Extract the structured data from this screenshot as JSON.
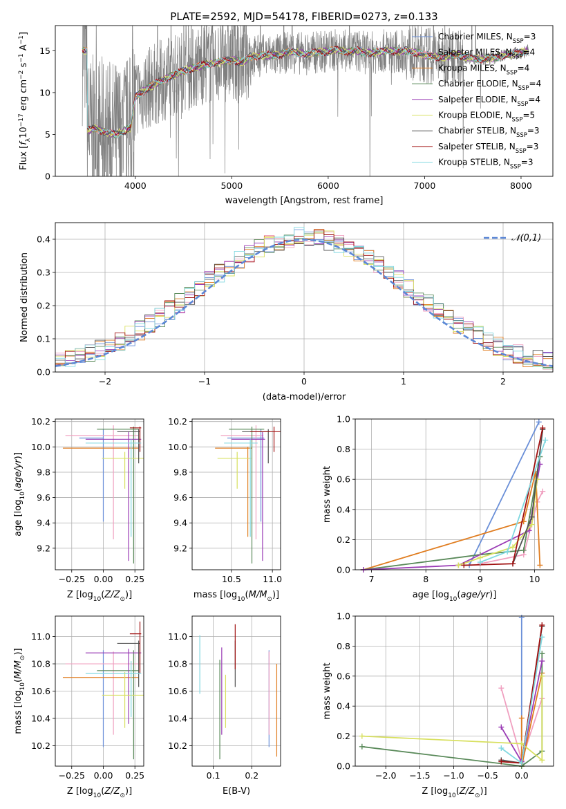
{
  "figure_title": "PLATE=2592, MJD=54178, FIBERID=0273, z=0.133",
  "series_colors": [
    "#6a8fd8",
    "#f0a0c0",
    "#e07d20",
    "#5a8a5a",
    "#9a3bb5",
    "#d8e060",
    "#505050",
    "#a01010",
    "#80d8e0"
  ],
  "legend_labels": [
    [
      "Chabrier MILES, N",
      "SSP",
      "=3"
    ],
    [
      "Salpeter MILES, N",
      "SSP",
      "=4"
    ],
    [
      "Kroupa MILES, N",
      "SSP",
      "=4"
    ],
    [
      "Chabrier ELODIE, N",
      "SSP",
      "=4"
    ],
    [
      "Salpeter ELODIE, N",
      "SSP",
      "=4"
    ],
    [
      "Kroupa ELODIE, N",
      "SSP",
      "=5"
    ],
    [
      "Chabrier STELIB, N",
      "SSP",
      "=3"
    ],
    [
      "Salpeter STELIB, N",
      "SSP",
      "=3"
    ],
    [
      "Kroupa STELIB, N",
      "SSP",
      "=3"
    ]
  ],
  "chart_data": [
    {
      "id": "spectrum",
      "type": "line",
      "xlabel": "wavelength [Angstrom, rest frame]",
      "ylabel": "Flux [f_λ 10^-17 erg cm^-2 s^-1 A^-1]",
      "xlim": [
        3170,
        8330
      ],
      "ylim": [
        0,
        18
      ],
      "xticks": [
        4000,
        5000,
        6000,
        7000,
        8000
      ],
      "yticks": [
        0,
        5,
        10,
        15
      ],
      "grid": false,
      "legend": "top-right",
      "data_color": "#808080",
      "continuum": {
        "x": [
          3500,
          3600,
          3700,
          3800,
          3900,
          3950,
          4000,
          4100,
          4200,
          4300,
          4400,
          4500,
          4600,
          4700,
          4800,
          4900,
          5000,
          5100,
          5200,
          5300,
          5400,
          5500,
          5600,
          5700,
          5800,
          5900,
          6000,
          6100,
          6200,
          6300,
          6400,
          6500,
          6600,
          6700,
          6800,
          6900,
          7000,
          7100,
          7200,
          7300,
          7400,
          7500,
          7600,
          7700,
          7800,
          7900,
          8000,
          8100
        ],
        "y": [
          5.5,
          5.7,
          5.2,
          5.0,
          5.5,
          5.8,
          9.5,
          10.3,
          11.0,
          11.6,
          12.1,
          12.6,
          12.9,
          13.3,
          13.5,
          13.7,
          13.9,
          13.6,
          14.3,
          14.4,
          14.5,
          14.5,
          14.9,
          14.7,
          14.6,
          14.9,
          14.9,
          15.1,
          14.9,
          15.0,
          14.7,
          14.8,
          15.0,
          14.9,
          15.0,
          14.8,
          14.5,
          14.3,
          14.2,
          14.6,
          14.3,
          14.1,
          14.0,
          14.1,
          14.4,
          14.6,
          14.8,
          15.0
        ]
      },
      "data_range": [
        3450,
        8080
      ]
    },
    {
      "id": "residuals",
      "type": "line",
      "xlabel": "(data-model)/error",
      "ylabel": "Normed distribution",
      "xlim": [
        -2.5,
        2.5
      ],
      "ylim": [
        0,
        0.45
      ],
      "xticks": [
        -2,
        -1,
        0,
        1,
        2
      ],
      "yticks": [
        0.0,
        0.1,
        0.2,
        0.3,
        0.4
      ],
      "grid": true,
      "legend": "top-right",
      "legend_label": "𝒩(0,1)",
      "normal_color": "#5b87d6",
      "hist_edges": [
        -2.5,
        -2.4,
        -2.3,
        -2.2,
        -2.1,
        -2.0,
        -1.9,
        -1.8,
        -1.7,
        -1.6,
        -1.5,
        -1.4,
        -1.3,
        -1.2,
        -1.1,
        -1.0,
        -0.9,
        -0.8,
        -0.7,
        -0.6,
        -0.5,
        -0.4,
        -0.3,
        -0.2,
        -0.1,
        0.0,
        0.1,
        0.2,
        0.3,
        0.4,
        0.5,
        0.6,
        0.7,
        0.8,
        0.9,
        1.0,
        1.1,
        1.2,
        1.3,
        1.4,
        1.5,
        1.6,
        1.7,
        1.8,
        1.9,
        2.0,
        2.1,
        2.2,
        2.3,
        2.4,
        2.5
      ]
    },
    {
      "id": "age_vs_Z",
      "type": "scatter",
      "xlabel": "Z [log10(Z/Z⊙)]",
      "ylabel": "age  [log10(age/yr)]",
      "xlim": [
        -0.38,
        0.32
      ],
      "ylim": [
        9.03,
        10.22
      ],
      "xticks": [
        -0.25,
        0.0,
        0.25
      ],
      "yticks": [
        9.2,
        9.4,
        9.6,
        9.8,
        10.0,
        10.2
      ],
      "grid": true,
      "errorbars": [
        {
          "x": 0.0,
          "xerr": [
            0.19,
            0.0
          ],
          "y": 10.07,
          "yerr": [
            0.66,
            0.07
          ],
          "color": "#6a8fd8"
        },
        {
          "x": 0.08,
          "xerr": [
            0.38,
            0.2
          ],
          "y": 10.09,
          "yerr": [
            0.82,
            0.08
          ],
          "color": "#f0a0c0"
        },
        {
          "x": 0.05,
          "xerr": [
            0.37,
            0.23
          ],
          "y": 9.99,
          "yerr": [
            0.0,
            0.0
          ],
          "color": "#e07d20"
        },
        {
          "x": 0.24,
          "xerr": [
            0.29,
            0.04
          ],
          "y": 10.14,
          "yerr": [
            1.06,
            0.02
          ],
          "color": "#5a8a5a"
        },
        {
          "x": 0.2,
          "xerr": [
            0.34,
            0.1
          ],
          "y": 10.06,
          "yerr": [
            0.96,
            0.06
          ],
          "color": "#9a3bb5"
        },
        {
          "x": 0.17,
          "xerr": [
            0.18,
            0.15
          ],
          "y": 9.91,
          "yerr": [
            0.24,
            0.05
          ],
          "color": "#d8e060"
        },
        {
          "x": 0.28,
          "xerr": [
            0.17,
            0.01
          ],
          "y": 10.12,
          "yerr": [
            0.25,
            0.02
          ],
          "color": "#505050"
        },
        {
          "x": 0.29,
          "xerr": [
            0.08,
            0.01
          ],
          "y": 10.15,
          "yerr": [
            0.19,
            0.01
          ],
          "color": "#a01010"
        },
        {
          "x": 0.22,
          "xerr": [
            0.36,
            0.08
          ],
          "y": 10.03,
          "yerr": [
            0.74,
            0.03
          ],
          "color": "#80d8e0"
        }
      ]
    },
    {
      "id": "age_vs_mass",
      "type": "scatter",
      "xlabel": "mass [log10(M/M⊙)]",
      "ylabel": "",
      "xlim": [
        10.02,
        11.1
      ],
      "ylim": [
        9.03,
        10.22
      ],
      "xticks": [
        10.5,
        11.0
      ],
      "yticks": [
        9.2,
        9.4,
        9.6,
        9.8,
        10.0,
        10.2
      ],
      "grid": true,
      "errorbars": [
        {
          "x": 10.86,
          "xerr": [
            0.41,
            0.04
          ],
          "y": 10.07,
          "yerr": [
            0.66,
            0.07
          ],
          "color": "#6a8fd8"
        },
        {
          "x": 10.8,
          "xerr": [
            0.43,
            0.09
          ],
          "y": 10.09,
          "yerr": [
            0.82,
            0.08
          ],
          "color": "#f0a0c0"
        },
        {
          "x": 10.7,
          "xerr": [
            0.4,
            0.05
          ],
          "y": 9.99,
          "yerr": [
            0.7,
            0.01
          ],
          "color": "#e07d20"
        },
        {
          "x": 10.75,
          "xerr": [
            0.28,
            0.15
          ],
          "y": 10.14,
          "yerr": [
            1.06,
            0.02
          ],
          "color": "#5a8a5a"
        },
        {
          "x": 10.88,
          "xerr": [
            0.38,
            0.03
          ],
          "y": 10.06,
          "yerr": [
            0.96,
            0.06
          ],
          "color": "#9a3bb5"
        },
        {
          "x": 10.57,
          "xerr": [
            0.24,
            0.17
          ],
          "y": 9.91,
          "yerr": [
            0.24,
            0.05
          ],
          "color": "#d8e060"
        },
        {
          "x": 10.95,
          "xerr": [
            0.32,
            0.02
          ],
          "y": 10.12,
          "yerr": [
            0.25,
            0.02
          ],
          "color": "#505050"
        },
        {
          "x": 11.02,
          "xerr": [
            0.29,
            0.09
          ],
          "y": 10.12,
          "yerr": [
            0.16,
            0.04
          ],
          "color": "#a01010"
        },
        {
          "x": 10.73,
          "xerr": [
            0.32,
            0.09
          ],
          "y": 10.03,
          "yerr": [
            0.74,
            0.03
          ],
          "color": "#80d8e0"
        }
      ]
    },
    {
      "id": "weight_vs_age",
      "type": "line",
      "xlabel": "age  [log10(age/yr)]",
      "ylabel": "mass weight",
      "xlim": [
        6.7,
        10.35
      ],
      "ylim": [
        0,
        1.0
      ],
      "xticks": [
        7,
        8,
        9,
        10
      ],
      "yticks": [
        0.0,
        0.2,
        0.4,
        0.6,
        0.8,
        1.0
      ],
      "grid": true,
      "series": [
        {
          "color": "#6a8fd8",
          "x": [
            8.8,
            10.08
          ],
          "y": [
            0.03,
            0.98
          ]
        },
        {
          "color": "#f0a0c0",
          "x": [
            9.0,
            9.8,
            10.05,
            10.15
          ],
          "y": [
            0.04,
            0.1,
            0.45,
            0.52
          ]
        },
        {
          "color": "#e07d20",
          "x": [
            6.85,
            9.8,
            10.02,
            10.1
          ],
          "y": [
            0.0,
            0.32,
            0.65,
            0.03
          ]
        },
        {
          "color": "#5a8a5a",
          "x": [
            6.85,
            9.0,
            9.8,
            10.1
          ],
          "y": [
            0.0,
            0.1,
            0.13,
            0.75
          ]
        },
        {
          "color": "#9a3bb5",
          "x": [
            6.85,
            8.6,
            9.9,
            10.1
          ],
          "y": [
            0.0,
            0.03,
            0.26,
            0.7
          ]
        },
        {
          "color": "#d8e060",
          "x": [
            8.6,
            9.0,
            9.6,
            9.95,
            10.05
          ],
          "y": [
            0.03,
            0.08,
            0.15,
            0.3,
            0.6
          ]
        },
        {
          "color": "#505050",
          "x": [
            9.6,
            9.95,
            10.15
          ],
          "y": [
            0.04,
            0.35,
            0.93
          ]
        },
        {
          "color": "#a01010",
          "x": [
            8.7,
            9.6,
            10.15
          ],
          "y": [
            0.03,
            0.04,
            0.94
          ]
        },
        {
          "color": "#80d8e0",
          "x": [
            9.0,
            9.5,
            10.2
          ],
          "y": [
            0.05,
            0.12,
            0.86
          ]
        }
      ]
    },
    {
      "id": "mass_vs_Z",
      "type": "scatter",
      "xlabel": "Z [log10(Z/Z⊙)]",
      "ylabel": "mass [log10(M/M⊙)]",
      "xlim": [
        -0.38,
        0.32
      ],
      "ylim": [
        10.05,
        11.15
      ],
      "xticks": [
        -0.25,
        0.0,
        0.25
      ],
      "yticks": [
        10.2,
        10.4,
        10.6,
        10.8,
        11.0
      ],
      "grid": true,
      "errorbars": [
        {
          "x": 0.0,
          "xerr": [
            0.0,
            0.0
          ],
          "y": 10.86,
          "yerr": [
            0.67,
            0.04
          ],
          "color": "#6a8fd8"
        },
        {
          "x": 0.08,
          "xerr": [
            0.38,
            0.2
          ],
          "y": 10.8,
          "yerr": [
            0.52,
            0.09
          ],
          "color": "#f0a0c0"
        },
        {
          "x": 0.05,
          "xerr": [
            0.37,
            0.23
          ],
          "y": 10.7,
          "yerr": [
            0.0,
            0.0
          ],
          "color": "#e07d20"
        },
        {
          "x": 0.24,
          "xerr": [
            0.29,
            0.04
          ],
          "y": 10.75,
          "yerr": [
            0.65,
            0.15
          ],
          "color": "#5a8a5a"
        },
        {
          "x": 0.2,
          "xerr": [
            0.34,
            0.1
          ],
          "y": 10.88,
          "yerr": [
            0.52,
            0.03
          ],
          "color": "#9a3bb5"
        },
        {
          "x": 0.17,
          "xerr": [
            0.18,
            0.15
          ],
          "y": 10.57,
          "yerr": [
            0.24,
            0.17
          ],
          "color": "#d8e060"
        },
        {
          "x": 0.28,
          "xerr": [
            0.17,
            0.01
          ],
          "y": 10.95,
          "yerr": [
            0.32,
            0.02
          ],
          "color": "#505050"
        },
        {
          "x": 0.29,
          "xerr": [
            0.08,
            0.01
          ],
          "y": 11.02,
          "yerr": [
            0.29,
            0.09
          ],
          "color": "#a01010"
        },
        {
          "x": 0.22,
          "xerr": [
            0.36,
            0.08
          ],
          "y": 10.73,
          "yerr": [
            0.32,
            0.09
          ],
          "color": "#80d8e0"
        }
      ]
    },
    {
      "id": "mass_vs_ebv",
      "type": "scatter",
      "xlabel": "E(B-V)",
      "ylabel": "",
      "xlim": [
        0.045,
        0.275
      ],
      "ylim": [
        10.05,
        11.15
      ],
      "xticks": [
        0.1,
        0.2
      ],
      "yticks": [
        10.2,
        10.4,
        10.6,
        10.8,
        11.0
      ],
      "grid": true,
      "errorbars": [
        {
          "x": 0.245,
          "y": 10.86,
          "yerr": [
            0.67,
            0.04
          ],
          "color": "#6a8fd8"
        },
        {
          "x": 0.245,
          "y": 10.8,
          "yerr": [
            0.52,
            0.09
          ],
          "color": "#f0a0c0"
        },
        {
          "x": 0.265,
          "y": 10.7,
          "yerr": [
            0.58,
            0.1
          ],
          "color": "#e07d20"
        },
        {
          "x": 0.117,
          "y": 10.75,
          "yerr": [
            0.65,
            0.08
          ],
          "color": "#5a8a5a"
        },
        {
          "x": 0.122,
          "y": 10.88,
          "yerr": [
            0.6,
            0.04
          ],
          "color": "#9a3bb5"
        },
        {
          "x": 0.132,
          "y": 10.57,
          "yerr": [
            0.24,
            0.15
          ],
          "color": "#d8e060"
        },
        {
          "x": 0.157,
          "y": 10.95,
          "yerr": [
            0.32,
            0.02
          ],
          "color": "#505050"
        },
        {
          "x": 0.157,
          "y": 11.02,
          "yerr": [
            0.26,
            0.07
          ],
          "color": "#a01010"
        },
        {
          "x": 0.065,
          "y": 10.73,
          "yerr": [
            0.15,
            0.28
          ],
          "color": "#80d8e0"
        }
      ]
    },
    {
      "id": "weight_vs_Z",
      "type": "line",
      "xlabel": "Z [log10(Z/Z⊙)]",
      "ylabel": "mass weight",
      "xlim": [
        -2.45,
        0.47
      ],
      "ylim": [
        0,
        1.0
      ],
      "xticks": [
        -2.0,
        -1.5,
        -1.0,
        -0.5,
        0.0
      ],
      "yticks": [
        0.0,
        0.2,
        0.4,
        0.6,
        0.8,
        1.0
      ],
      "grid": true,
      "series": [
        {
          "color": "#6a8fd8",
          "x": [
            0.0,
            0.0
          ],
          "y": [
            0.02,
            0.99
          ]
        },
        {
          "color": "#f0a0c0",
          "x": [
            -0.3,
            0.0,
            0.3
          ],
          "y": [
            0.52,
            0.04,
            0.45
          ]
        },
        {
          "color": "#e07d20",
          "x": [
            0.0,
            0.0,
            0.3
          ],
          "y": [
            0.32,
            0.0,
            0.62
          ]
        },
        {
          "color": "#5a8a5a",
          "x": [
            -2.35,
            0.0,
            0.3,
            0.3
          ],
          "y": [
            0.13,
            0.0,
            0.1,
            0.75
          ]
        },
        {
          "color": "#9a3bb5",
          "x": [
            -0.3,
            0.0,
            0.3
          ],
          "y": [
            0.26,
            0.03,
            0.7
          ]
        },
        {
          "color": "#d8e060",
          "x": [
            -2.35,
            0.0,
            0.3,
            0.3
          ],
          "y": [
            0.2,
            0.15,
            0.04,
            0.6
          ]
        },
        {
          "color": "#505050",
          "x": [
            -0.3,
            0.0,
            0.3
          ],
          "y": [
            0.04,
            0.02,
            0.93
          ]
        },
        {
          "color": "#a01010",
          "x": [
            -0.3,
            0.0,
            0.3
          ],
          "y": [
            0.03,
            0.02,
            0.94
          ]
        },
        {
          "color": "#80d8e0",
          "x": [
            -0.3,
            0.0,
            0.3
          ],
          "y": [
            0.12,
            0.02,
            0.86
          ]
        }
      ]
    }
  ]
}
